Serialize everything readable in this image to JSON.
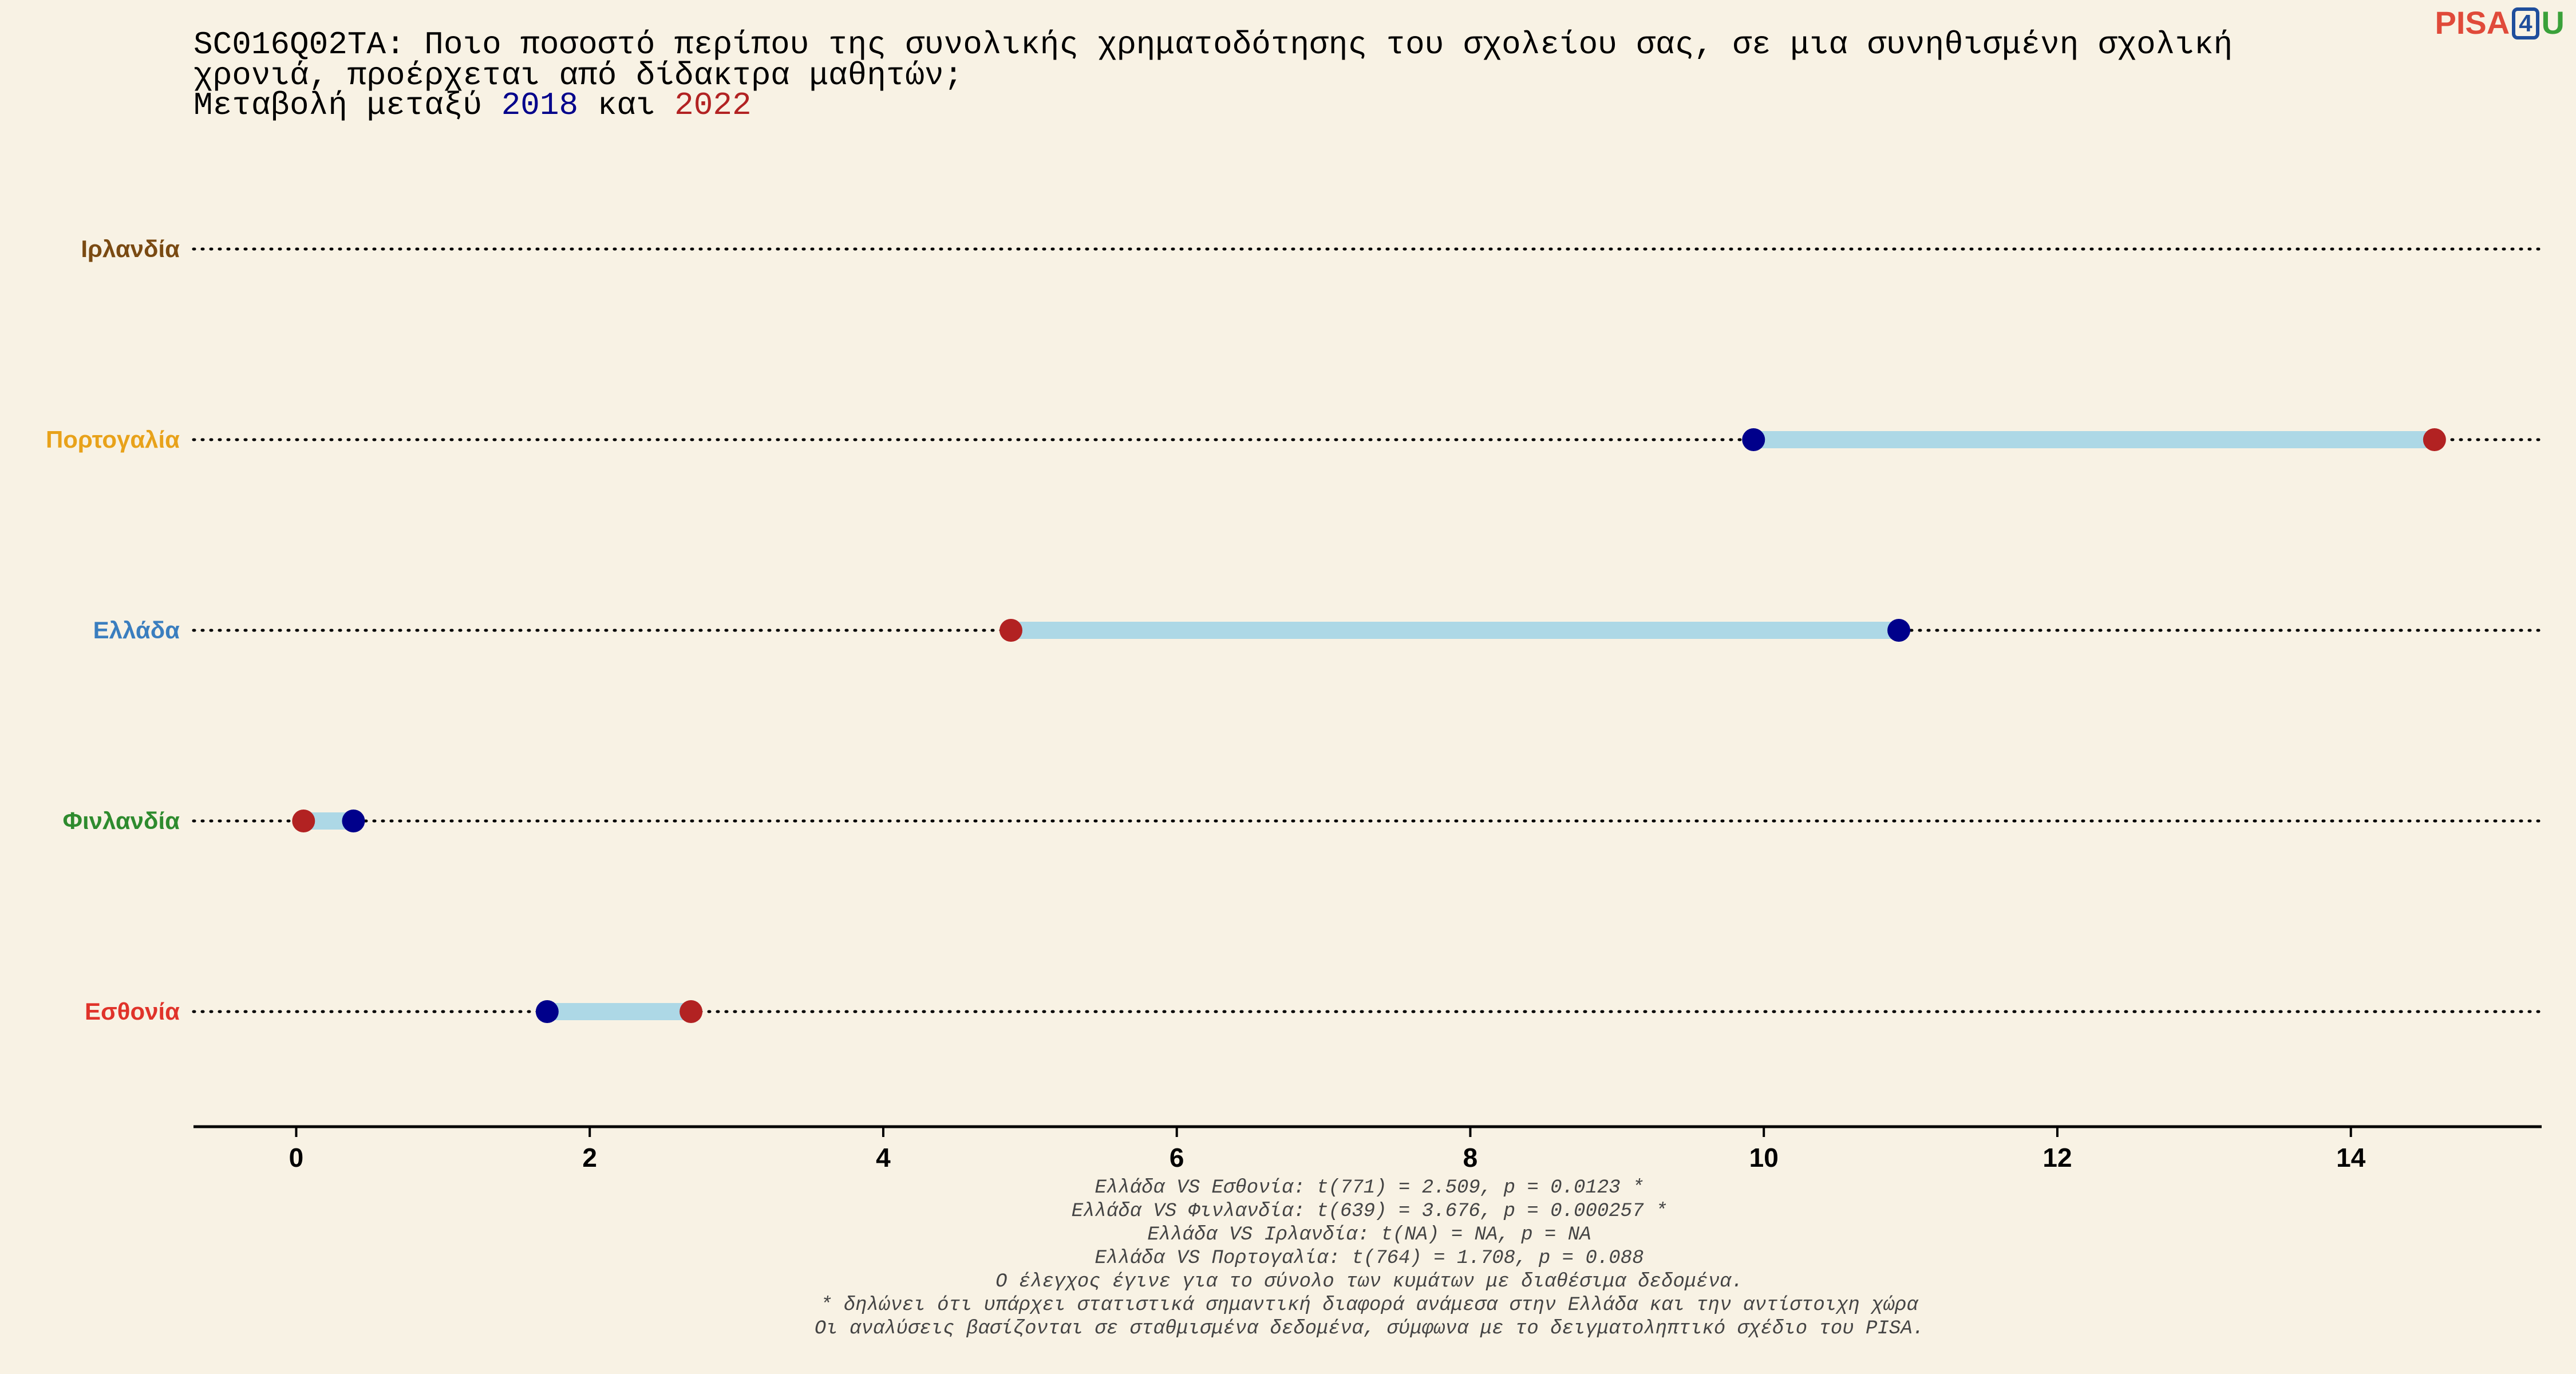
{
  "chart_data": {
    "type": "dumbbell",
    "title": {
      "line1": "SC016Q02TA: Ποιο ποσοστό περίπου της συνολικής χρηματοδότησης του σχολείου σας, σε μια συνηθισμένη σχολική",
      "line2": "χρονιά, προέρχεται από δίδακτρα μαθητών;",
      "line3_prefix": "Μεταβολή μεταξύ",
      "line3_year1": "2018",
      "line3_and": "και",
      "line3_year2": "2022"
    },
    "xlim": [
      -0.7,
      15.3
    ],
    "xticks": [
      0,
      2,
      4,
      6,
      8,
      10,
      12,
      14
    ],
    "categories": [
      {
        "name": "Ιρλανδία",
        "color": "#7a4a12",
        "v2018": null,
        "v2022": null
      },
      {
        "name": "Πορτογαλία",
        "color": "#e8a21a",
        "v2018": 9.93,
        "v2022": 14.57
      },
      {
        "name": "Ελλάδα",
        "color": "#3a7ebf",
        "v2018": 10.92,
        "v2022": 4.87
      },
      {
        "name": "Φινλανδία",
        "color": "#2e8b2e",
        "v2018": 0.39,
        "v2022": 0.05
      },
      {
        "name": "Εσθονία",
        "color": "#e0332a",
        "v2018": 1.71,
        "v2022": 2.69
      }
    ],
    "colors": {
      "y2018": "#00008b",
      "y2022": "#b22222",
      "segment": "#add8e6"
    },
    "grid": "dotted-per-row",
    "footnotes": [
      "Ελλάδα VS Εσθονία: t(771) = 2.509, p = 0.0123 *",
      "Ελλάδα VS Φινλανδία: t(639) = 3.676, p = 0.000257 *",
      "Ελλάδα VS Ιρλανδία: t(NA) = NA, p = NA",
      "Ελλάδα VS Πορτογαλία: t(764) = 1.708, p = 0.088",
      "Ο έλεγχος έγινε για το σύνολο των κυμάτων με διαθέσιμα δεδομένα.",
      "* δηλώνει ότι υπάρχει στατιστικά σημαντική διαφορά ανάμεσα στην Ελλάδα και την αντίστοιχη χώρα",
      "Οι αναλύσεις βασίζονται σε σταθμισμένα δεδομένα, σύμφωνα με το δειγματοληπτικό σχέδιο του PISA."
    ]
  },
  "logo": {
    "p1": "PISA",
    "p2": "4",
    "p3": "U"
  }
}
